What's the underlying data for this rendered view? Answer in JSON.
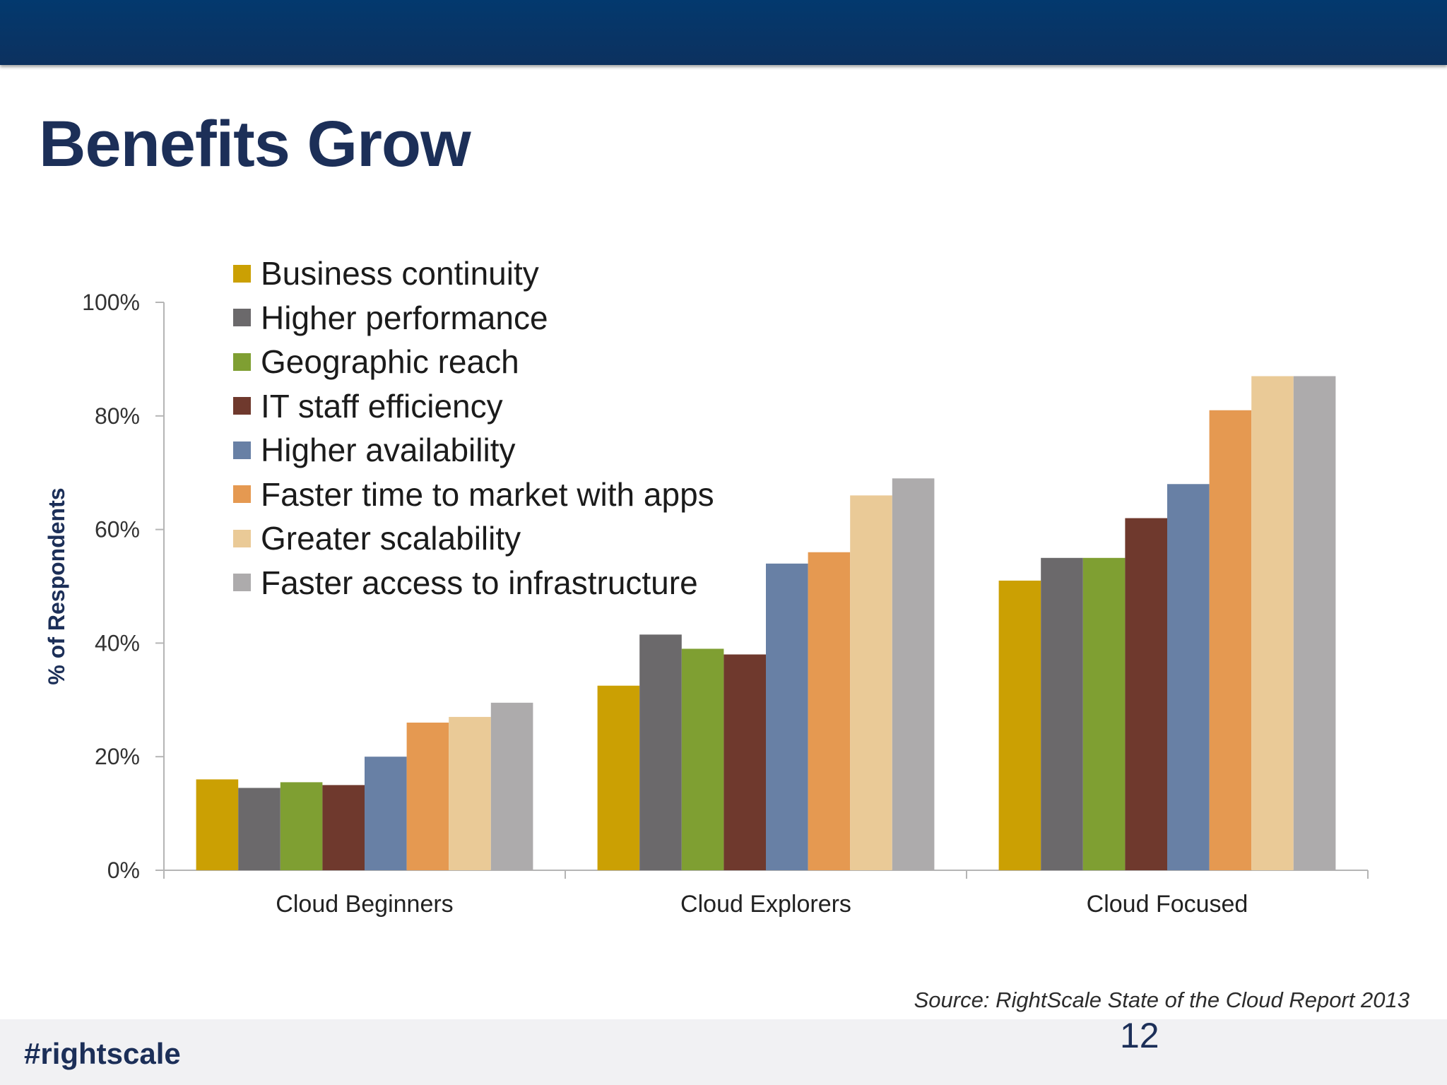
{
  "slide": {
    "title": "Benefits Grow",
    "source": "Source: RightScale State of the Cloud Report 2013",
    "hashtag": "#rightscale",
    "page_number": "12"
  },
  "chart_data": {
    "type": "bar",
    "title": "",
    "xlabel": "",
    "ylabel": "% of Respondents",
    "ylim": [
      0,
      100
    ],
    "y_ticks": [
      0,
      20,
      40,
      60,
      80,
      100
    ],
    "y_tick_labels": [
      "0%",
      "20%",
      "40%",
      "60%",
      "80%",
      "100%"
    ],
    "categories": [
      "Cloud Beginners",
      "Cloud Explorers",
      "Cloud Focused"
    ],
    "legend_position": "top-left",
    "grid": false,
    "series": [
      {
        "name": "Business continuity",
        "color": "#cba003",
        "values": [
          16,
          32.5,
          51
        ]
      },
      {
        "name": "Higher performance",
        "color": "#6b696b",
        "values": [
          14.5,
          41.5,
          55
        ]
      },
      {
        "name": "Geographic reach",
        "color": "#7f9f32",
        "values": [
          15.5,
          39,
          55
        ]
      },
      {
        "name": "IT staff efficiency",
        "color": "#6f392d",
        "values": [
          15,
          38,
          62
        ]
      },
      {
        "name": "Higher availability",
        "color": "#6880a5",
        "values": [
          20,
          54,
          68
        ]
      },
      {
        "name": "Faster time to market with apps",
        "color": "#e59951",
        "values": [
          26,
          56,
          81
        ]
      },
      {
        "name": "Greater scalability",
        "color": "#eaca97",
        "values": [
          27,
          66,
          87
        ]
      },
      {
        "name": "Faster access to infrastructure",
        "color": "#adabac",
        "values": [
          29.5,
          69,
          87
        ]
      }
    ]
  }
}
